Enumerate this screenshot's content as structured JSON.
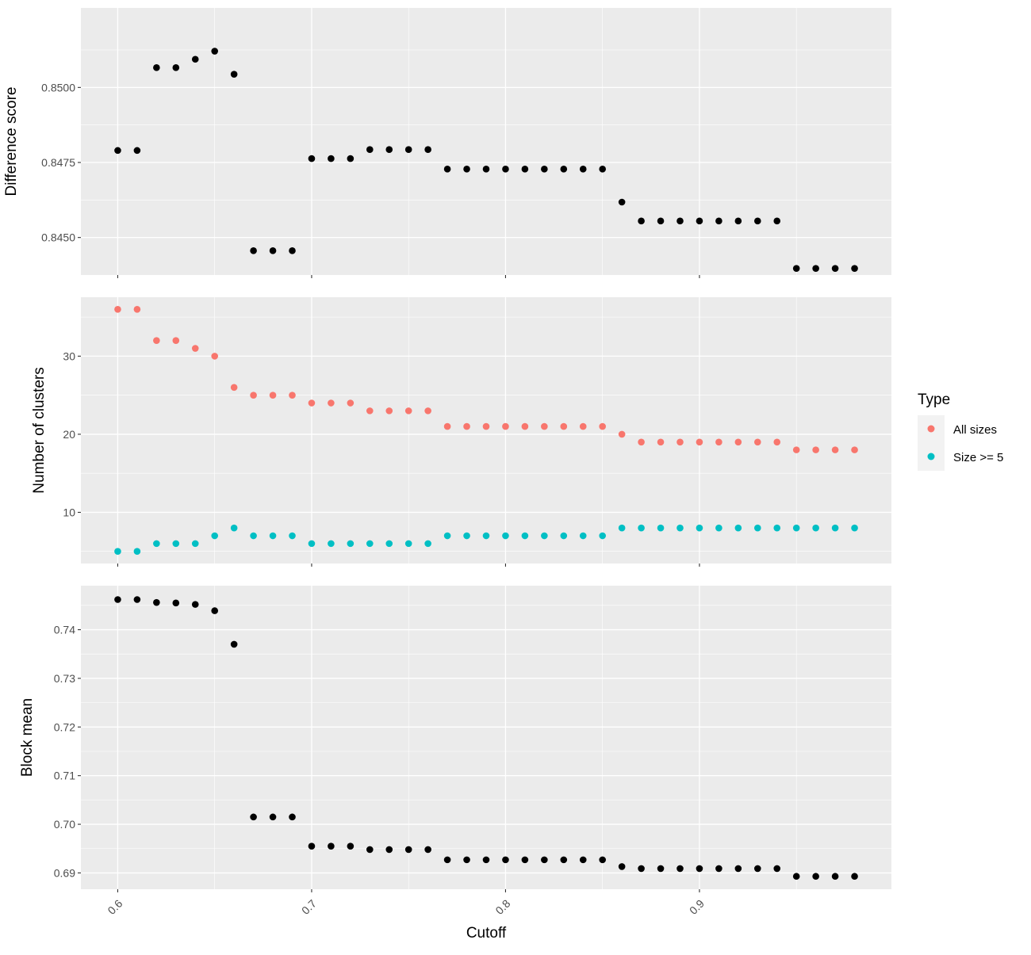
{
  "chart_data": {
    "type": "scatter",
    "xlabel": "Cutoff",
    "x_ticks": [
      "0.6",
      "0.7",
      "0.8",
      "0.9"
    ],
    "xlim": [
      0.581,
      0.999
    ],
    "x": [
      0.6,
      0.61,
      0.62,
      0.63,
      0.64,
      0.65,
      0.66,
      0.67,
      0.68,
      0.69,
      0.7,
      0.71,
      0.72,
      0.73,
      0.74,
      0.75,
      0.76,
      0.77,
      0.78,
      0.79,
      0.8,
      0.81,
      0.82,
      0.83,
      0.84,
      0.85,
      0.86,
      0.87,
      0.88,
      0.89,
      0.9,
      0.91,
      0.92,
      0.93,
      0.94,
      0.95,
      0.96,
      0.97,
      0.98
    ],
    "panels": [
      {
        "ylabel": "Difference score",
        "y_ticks": [
          0.845,
          0.8475,
          0.85
        ],
        "y_tick_labels": [
          "0.8450",
          "0.8475",
          "0.8500"
        ],
        "ylim": [
          0.84375,
          0.85265
        ],
        "series": [
          {
            "color": "#000000",
            "values": [
              0.8479,
              0.8479,
              0.85066,
              0.85066,
              0.85094,
              0.85121,
              0.85044,
              0.84456,
              0.84456,
              0.84456,
              0.84763,
              0.84763,
              0.84763,
              0.84793,
              0.84793,
              0.84793,
              0.84793,
              0.84728,
              0.84728,
              0.84728,
              0.84728,
              0.84728,
              0.84728,
              0.84728,
              0.84728,
              0.84728,
              0.84618,
              0.84555,
              0.84555,
              0.84555,
              0.84555,
              0.84555,
              0.84555,
              0.84555,
              0.84555,
              0.84397,
              0.84397,
              0.84397,
              0.84397
            ]
          }
        ]
      },
      {
        "ylabel": "Number of clusters",
        "y_ticks": [
          10,
          20,
          30
        ],
        "y_tick_labels": [
          "10",
          "20",
          "30"
        ],
        "ylim": [
          3.45,
          37.55
        ],
        "series": [
          {
            "name": "All sizes",
            "color": "#F8766D",
            "values": [
              36,
              36,
              32,
              32,
              31,
              30,
              26,
              25,
              25,
              25,
              24,
              24,
              24,
              23,
              23,
              23,
              23,
              21,
              21,
              21,
              21,
              21,
              21,
              21,
              21,
              21,
              20,
              19,
              19,
              19,
              19,
              19,
              19,
              19,
              19,
              18,
              18,
              18,
              18
            ]
          },
          {
            "name": "Size >= 5",
            "color": "#00BFC4",
            "values": [
              5,
              5,
              6,
              6,
              6,
              7,
              8,
              7,
              7,
              7,
              6,
              6,
              6,
              6,
              6,
              6,
              6,
              7,
              7,
              7,
              7,
              7,
              7,
              7,
              7,
              7,
              8,
              8,
              8,
              8,
              8,
              8,
              8,
              8,
              8,
              8,
              8,
              8,
              8
            ]
          }
        ]
      },
      {
        "ylabel": "Block mean",
        "y_ticks": [
          0.69,
          0.7,
          0.71,
          0.72,
          0.73,
          0.74
        ],
        "y_tick_labels": [
          "0.69",
          "0.70",
          "0.71",
          "0.72",
          "0.73",
          "0.74"
        ],
        "ylim": [
          0.68665,
          0.74905
        ],
        "series": [
          {
            "color": "#000000",
            "values": [
              0.7462,
              0.7462,
              0.7456,
              0.7455,
              0.7452,
              0.7439,
              0.737,
              0.7015,
              0.7015,
              0.7015,
              0.6955,
              0.6955,
              0.6955,
              0.6948,
              0.6948,
              0.6948,
              0.6948,
              0.6927,
              0.6927,
              0.6927,
              0.6927,
              0.6927,
              0.6927,
              0.6927,
              0.6927,
              0.6927,
              0.6913,
              0.6909,
              0.6909,
              0.6909,
              0.6909,
              0.6909,
              0.6909,
              0.6909,
              0.6909,
              0.6893,
              0.6893,
              0.6893,
              0.6893
            ]
          }
        ]
      }
    ],
    "legend": {
      "title": "Type",
      "placement": "right",
      "items": [
        {
          "label": "All sizes",
          "color": "#F8766D"
        },
        {
          "label": "Size >= 5",
          "color": "#00BFC4"
        }
      ]
    },
    "grid": true,
    "panel_background": "#EBEBEB",
    "grid_color": "#FFFFFF"
  }
}
